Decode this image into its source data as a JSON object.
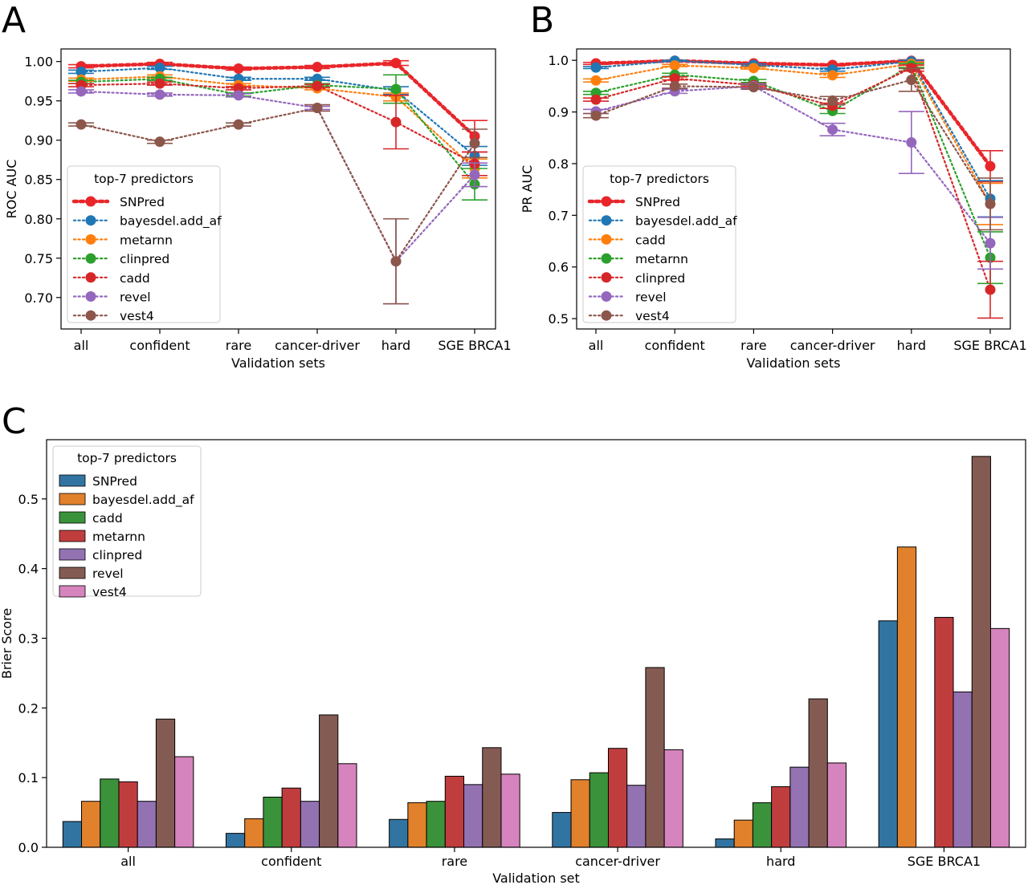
{
  "panels": [
    "A",
    "B",
    "C"
  ],
  "chart_data": [
    {
      "panel": "A",
      "type": "line",
      "xlabel": "Validation sets",
      "ylabel": "ROC AUC",
      "categories": [
        "all",
        "confident",
        "rare",
        "cancer-driver",
        "hard",
        "SGE BRCA1"
      ],
      "ylim": [
        0.66,
        1.016
      ],
      "yticks": [
        "0.70",
        "0.75",
        "0.80",
        "0.85",
        "0.90",
        "0.95",
        "1.00"
      ],
      "legend_title": "top-7 predictors",
      "legend_position": "lower-left",
      "series": [
        {
          "name": "SNPred",
          "color": "#e8262a",
          "values": [
            0.994,
            0.997,
            0.991,
            0.993,
            0.998,
            0.905
          ],
          "err": [
            0.002,
            0.002,
            0.002,
            0.002,
            0.003,
            0.02
          ],
          "bold": true
        },
        {
          "name": "bayesdel.add_af",
          "color": "#1f77b4",
          "values": [
            0.987,
            0.992,
            0.978,
            0.978,
            0.963,
            0.88
          ],
          "err": [
            0.002,
            0.002,
            0.002,
            0.002,
            0.005,
            0.012
          ]
        },
        {
          "name": "metarnn",
          "color": "#ff7f0e",
          "values": [
            0.977,
            0.981,
            0.97,
            0.966,
            0.955,
            0.864
          ],
          "err": [
            0.002,
            0.002,
            0.002,
            0.002,
            0.005,
            0.012
          ]
        },
        {
          "name": "clinpred",
          "color": "#2ca02c",
          "values": [
            0.974,
            0.978,
            0.958,
            0.97,
            0.965,
            0.844
          ],
          "err": [
            0.002,
            0.002,
            0.002,
            0.002,
            0.018,
            0.02
          ]
        },
        {
          "name": "cadd",
          "color": "#d62728",
          "values": [
            0.97,
            0.972,
            0.966,
            0.969,
            0.923,
            0.87
          ],
          "err": [
            0.002,
            0.002,
            0.002,
            0.002,
            0.034,
            0.015
          ]
        },
        {
          "name": "revel",
          "color": "#9467bd",
          "values": [
            0.962,
            0.958,
            0.957,
            0.941,
            0.746,
            0.856
          ],
          "err": [
            0.002,
            0.002,
            0.002,
            0.002,
            0.054,
            0.015
          ]
        },
        {
          "name": "vest4",
          "color": "#8c564b",
          "values": [
            0.92,
            0.898,
            0.92,
            0.941,
            0.746,
            0.896
          ],
          "err": [
            0.002,
            0.002,
            0.002,
            0.004,
            0.054,
            0.018
          ]
        }
      ]
    },
    {
      "panel": "B",
      "type": "line",
      "xlabel": "Validation sets",
      "ylabel": "PR AUC",
      "categories": [
        "all",
        "confident",
        "rare",
        "cancer-driver",
        "hard",
        "SGE BRCA1"
      ],
      "ylim": [
        0.48,
        1.022
      ],
      "yticks": [
        "0.5",
        "0.6",
        "0.7",
        "0.8",
        "0.9",
        "1.0"
      ],
      "legend_title": "top-7 predictors",
      "legend_position": "lower-left",
      "series": [
        {
          "name": "SNPred",
          "color": "#e8262a",
          "values": [
            0.994,
            0.999,
            0.994,
            0.991,
            0.999,
            0.795
          ],
          "err": [
            0.002,
            0.001,
            0.002,
            0.002,
            0.002,
            0.03
          ],
          "bold": true
        },
        {
          "name": "bayesdel.add_af",
          "color": "#1f77b4",
          "values": [
            0.986,
            0.999,
            0.991,
            0.982,
            0.998,
            0.732
          ],
          "err": [
            0.002,
            0.001,
            0.002,
            0.003,
            0.002,
            0.035
          ]
        },
        {
          "name": "cadd",
          "color": "#ff7f0e",
          "values": [
            0.961,
            0.99,
            0.985,
            0.971,
            0.993,
            0.722
          ],
          "err": [
            0.003,
            0.002,
            0.002,
            0.004,
            0.003,
            0.04
          ]
        },
        {
          "name": "metarnn",
          "color": "#2ca02c",
          "values": [
            0.937,
            0.972,
            0.96,
            0.902,
            0.99,
            0.618
          ],
          "err": [
            0.003,
            0.003,
            0.003,
            0.005,
            0.004,
            0.05
          ]
        },
        {
          "name": "clinpred",
          "color": "#d62728",
          "values": [
            0.924,
            0.965,
            0.952,
            0.912,
            0.985,
            0.556
          ],
          "err": [
            0.003,
            0.003,
            0.003,
            0.005,
            0.006,
            0.055
          ]
        },
        {
          "name": "revel",
          "color": "#9467bd",
          "values": [
            0.901,
            0.94,
            0.95,
            0.866,
            0.841,
            0.646
          ],
          "err": [
            0.004,
            0.004,
            0.004,
            0.012,
            0.06,
            0.05
          ]
        },
        {
          "name": "vest4",
          "color": "#8c564b",
          "values": [
            0.893,
            0.95,
            0.948,
            0.922,
            0.962,
            0.722
          ],
          "err": [
            0.004,
            0.004,
            0.004,
            0.008,
            0.022,
            0.05
          ]
        }
      ]
    },
    {
      "panel": "C",
      "type": "bar",
      "xlabel": "Validation set",
      "ylabel": "Brier Score",
      "categories": [
        "all",
        "confident",
        "rare",
        "cancer-driver",
        "hard",
        "SGE BRCA1"
      ],
      "ylim": [
        0,
        0.585
      ],
      "yticks": [
        "0.0",
        "0.1",
        "0.2",
        "0.3",
        "0.4",
        "0.5"
      ],
      "legend_title": "top-7 predictors",
      "legend_position": "upper-left",
      "series": [
        {
          "name": "SNPred",
          "color": "#3274a1",
          "values": [
            0.037,
            0.02,
            0.04,
            0.05,
            0.012,
            0.325
          ]
        },
        {
          "name": "bayesdel.add_af",
          "color": "#e1812c",
          "values": [
            0.066,
            0.041,
            0.064,
            0.097,
            0.039,
            0.431
          ]
        },
        {
          "name": "cadd",
          "color": "#3a923a",
          "values": [
            0.098,
            0.072,
            0.066,
            0.107,
            0.064,
            0.0
          ]
        },
        {
          "name": "metarnn",
          "color": "#c03d3e",
          "values": [
            0.094,
            0.085,
            0.102,
            0.142,
            0.087,
            0.33
          ]
        },
        {
          "name": "clinpred",
          "color": "#9372b2",
          "values": [
            0.066,
            0.066,
            0.09,
            0.089,
            0.115,
            0.223
          ]
        },
        {
          "name": "revel",
          "color": "#845b53",
          "values": [
            0.184,
            0.19,
            0.143,
            0.258,
            0.213,
            0.561
          ]
        },
        {
          "name": "vest4",
          "color": "#d684bd",
          "values": [
            0.13,
            0.12,
            0.105,
            0.14,
            0.121,
            0.314
          ]
        }
      ]
    }
  ]
}
